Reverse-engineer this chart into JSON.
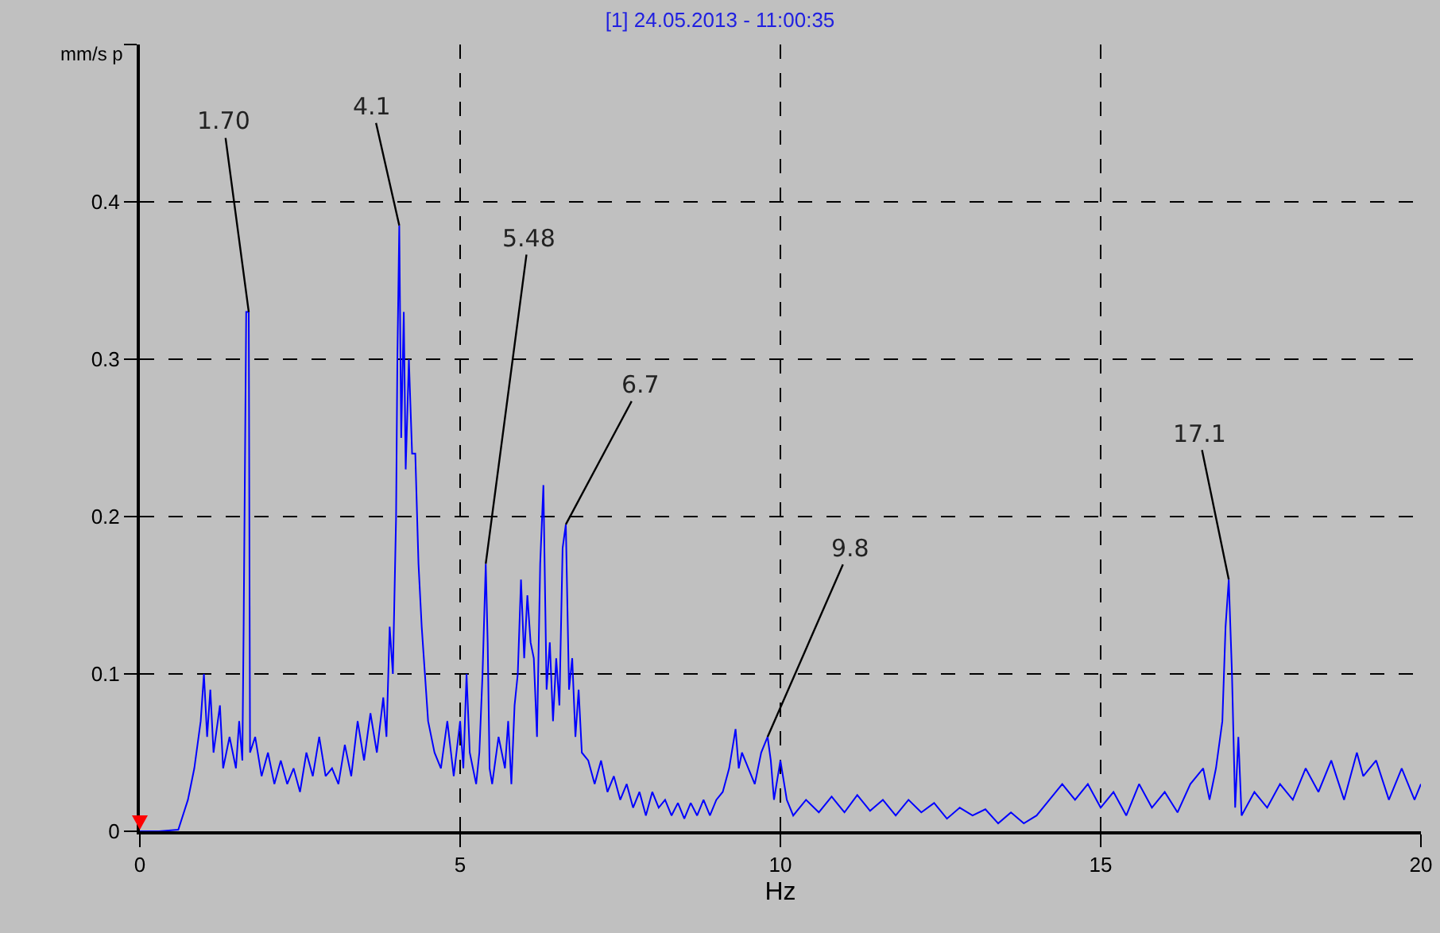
{
  "chart_data": {
    "type": "line",
    "title": "[1] 24.05.2013 - 11:00:35",
    "xlabel": "Hz",
    "ylabel": "mm/s p",
    "xlim": [
      0,
      20
    ],
    "xticks": [
      0,
      5,
      10,
      15,
      20
    ],
    "ylim": [
      0,
      0.5
    ],
    "yticks": [
      0,
      0.1,
      0.2,
      0.3,
      0.4,
      {
        "value": 0.5,
        "label": null
      }
    ],
    "grid": true,
    "legend": false,
    "marker": "none",
    "line_style": "solid",
    "annotations": [
      {
        "text": "1.70",
        "x": 1.7,
        "y": 0.33
      },
      {
        "text": "4.1",
        "x": 4.05,
        "y": 0.385
      },
      {
        "text": "5.48",
        "x": 5.4,
        "y": 0.17
      },
      {
        "text": "6.7",
        "x": 6.65,
        "y": 0.195
      },
      {
        "text": "9.8",
        "x": 9.8,
        "y": 0.06
      },
      {
        "text": "17.1",
        "x": 17.0,
        "y": 0.16
      }
    ],
    "x": [
      0,
      0.3,
      0.6,
      0.75,
      0.85,
      0.95,
      1.0,
      1.05,
      1.1,
      1.15,
      1.25,
      1.3,
      1.4,
      1.5,
      1.55,
      1.6,
      1.62,
      1.66,
      1.7,
      1.72,
      1.8,
      1.9,
      2.0,
      2.1,
      2.2,
      2.3,
      2.4,
      2.5,
      2.6,
      2.7,
      2.8,
      2.9,
      3.0,
      3.1,
      3.2,
      3.3,
      3.4,
      3.5,
      3.6,
      3.7,
      3.8,
      3.85,
      3.9,
      3.95,
      4.0,
      4.02,
      4.05,
      4.08,
      4.12,
      4.15,
      4.2,
      4.25,
      4.3,
      4.35,
      4.4,
      4.45,
      4.5,
      4.6,
      4.7,
      4.8,
      4.9,
      5.0,
      5.05,
      5.1,
      5.15,
      5.2,
      5.25,
      5.3,
      5.35,
      5.4,
      5.43,
      5.46,
      5.5,
      5.6,
      5.7,
      5.75,
      5.8,
      5.85,
      5.9,
      5.95,
      6.0,
      6.05,
      6.1,
      6.15,
      6.2,
      6.25,
      6.3,
      6.35,
      6.4,
      6.45,
      6.5,
      6.55,
      6.6,
      6.65,
      6.7,
      6.75,
      6.8,
      6.85,
      6.9,
      7.0,
      7.1,
      7.2,
      7.3,
      7.4,
      7.5,
      7.6,
      7.7,
      7.8,
      7.9,
      8.0,
      8.1,
      8.2,
      8.3,
      8.4,
      8.5,
      8.6,
      8.7,
      8.8,
      8.9,
      9.0,
      9.1,
      9.2,
      9.3,
      9.35,
      9.4,
      9.5,
      9.6,
      9.7,
      9.8,
      9.85,
      9.9,
      10.0,
      10.1,
      10.2,
      10.4,
      10.6,
      10.8,
      11.0,
      11.2,
      11.4,
      11.6,
      11.8,
      12.0,
      12.2,
      12.4,
      12.6,
      12.8,
      13.0,
      13.2,
      13.4,
      13.6,
      13.8,
      14.0,
      14.2,
      14.4,
      14.6,
      14.8,
      15.0,
      15.2,
      15.4,
      15.6,
      15.8,
      16.0,
      16.2,
      16.4,
      16.6,
      16.7,
      16.8,
      16.9,
      16.95,
      17.0,
      17.05,
      17.1,
      17.15,
      17.2,
      17.4,
      17.6,
      17.8,
      18.0,
      18.2,
      18.4,
      18.6,
      18.8,
      19.0,
      19.1,
      19.3,
      19.5,
      19.7,
      19.9,
      20.0
    ],
    "series": [
      {
        "color": "#0000ff",
        "values": [
          0,
          0,
          0.001,
          0.02,
          0.04,
          0.07,
          0.1,
          0.06,
          0.09,
          0.05,
          0.08,
          0.04,
          0.06,
          0.04,
          0.07,
          0.045,
          0.13,
          0.33,
          0.33,
          0.05,
          0.06,
          0.035,
          0.05,
          0.03,
          0.045,
          0.03,
          0.04,
          0.025,
          0.05,
          0.035,
          0.06,
          0.035,
          0.04,
          0.03,
          0.055,
          0.035,
          0.07,
          0.045,
          0.075,
          0.05,
          0.085,
          0.06,
          0.13,
          0.1,
          0.2,
          0.3,
          0.385,
          0.25,
          0.33,
          0.23,
          0.3,
          0.24,
          0.24,
          0.17,
          0.13,
          0.1,
          0.07,
          0.05,
          0.04,
          0.07,
          0.035,
          0.07,
          0.04,
          0.1,
          0.05,
          0.04,
          0.03,
          0.05,
          0.1,
          0.17,
          0.12,
          0.04,
          0.03,
          0.06,
          0.04,
          0.07,
          0.03,
          0.08,
          0.1,
          0.16,
          0.11,
          0.15,
          0.12,
          0.11,
          0.06,
          0.17,
          0.22,
          0.09,
          0.12,
          0.07,
          0.11,
          0.08,
          0.18,
          0.195,
          0.09,
          0.11,
          0.06,
          0.09,
          0.05,
          0.045,
          0.03,
          0.045,
          0.025,
          0.035,
          0.02,
          0.03,
          0.015,
          0.025,
          0.01,
          0.025,
          0.015,
          0.02,
          0.01,
          0.018,
          0.008,
          0.018,
          0.01,
          0.02,
          0.01,
          0.02,
          0.025,
          0.04,
          0.065,
          0.04,
          0.05,
          0.04,
          0.03,
          0.05,
          0.06,
          0.045,
          0.02,
          0.045,
          0.02,
          0.01,
          0.02,
          0.012,
          0.022,
          0.012,
          0.023,
          0.013,
          0.02,
          0.01,
          0.02,
          0.012,
          0.018,
          0.008,
          0.015,
          0.01,
          0.014,
          0.005,
          0.012,
          0.005,
          0.01,
          0.02,
          0.03,
          0.02,
          0.03,
          0.015,
          0.025,
          0.01,
          0.03,
          0.015,
          0.025,
          0.012,
          0.03,
          0.04,
          0.02,
          0.04,
          0.07,
          0.13,
          0.16,
          0.1,
          0.015,
          0.06,
          0.01,
          0.025,
          0.015,
          0.03,
          0.02,
          0.04,
          0.025,
          0.045,
          0.02,
          0.05,
          0.035,
          0.045,
          0.02,
          0.04,
          0.02,
          0.03
        ]
      }
    ]
  }
}
